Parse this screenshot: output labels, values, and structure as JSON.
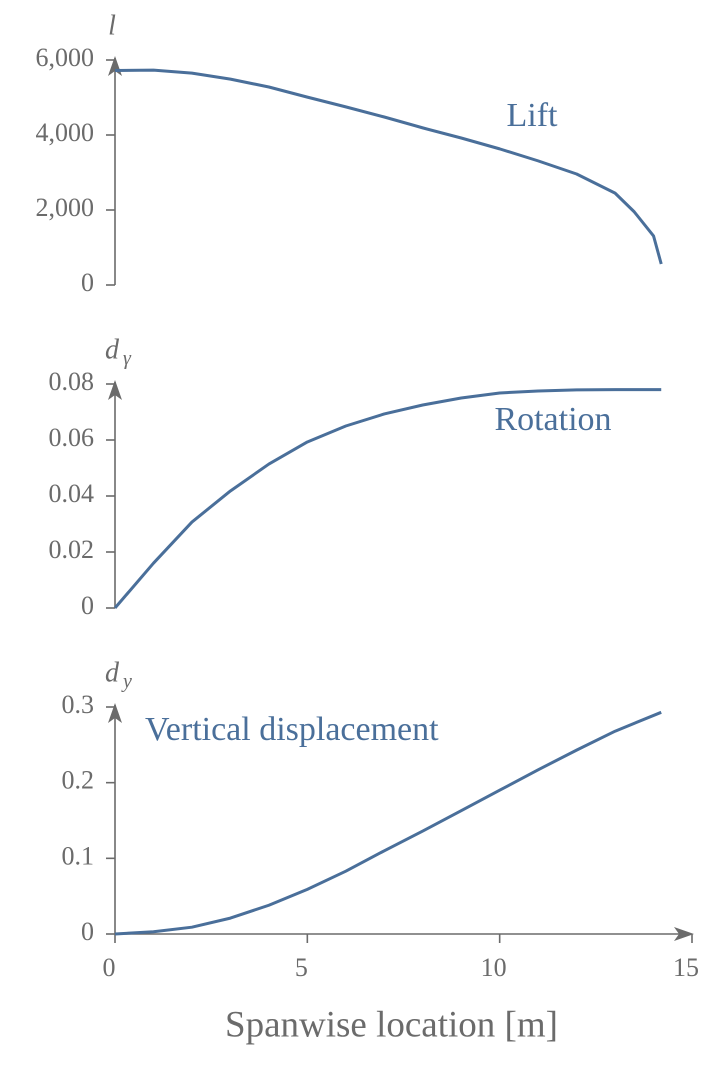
{
  "chart_data": [
    {
      "type": "line",
      "ylabel": "l",
      "x": [
        0,
        1,
        2,
        3,
        4,
        5,
        6,
        7,
        8,
        9,
        10,
        11,
        12,
        13,
        13.5,
        14,
        14.2
      ],
      "series": [
        {
          "name": "Lift",
          "color": "#4a6f9a",
          "values": [
            5720,
            5730,
            5650,
            5490,
            5280,
            5010,
            4750,
            4480,
            4190,
            3920,
            3630,
            3310,
            2960,
            2450,
            1950,
            1310,
            560
          ]
        }
      ],
      "xlim": [
        0,
        15
      ],
      "ylim": [
        0,
        6000
      ],
      "yticks": [
        0,
        {
          "value": 2000,
          "label": "2,000"
        },
        {
          "value": 4000,
          "label": "4,000"
        },
        {
          "value": 6000,
          "label": "6,000"
        }
      ]
    },
    {
      "type": "line",
      "ylabel": "d",
      "ylabel_subscript": "γ",
      "x": [
        0,
        1,
        2,
        3,
        4,
        5,
        6,
        7,
        8,
        9,
        10,
        11,
        12,
        13,
        14.2
      ],
      "series": [
        {
          "name": "Rotation",
          "color": "#4a6f9a",
          "values": [
            0,
            0.016,
            0.0307,
            0.0418,
            0.0514,
            0.0593,
            0.065,
            0.0693,
            0.0725,
            0.075,
            0.0768,
            0.0775,
            0.0779,
            0.078,
            0.078
          ]
        }
      ],
      "xlim": [
        0,
        15
      ],
      "ylim": [
        0,
        0.08
      ],
      "yticks": [
        0,
        0.02,
        0.04,
        0.06,
        0.08
      ]
    },
    {
      "type": "line",
      "ylabel": "d",
      "ylabel_subscript": "y",
      "xlabel": "Spanwise location [m]",
      "x": [
        0,
        1,
        2,
        3,
        4,
        5,
        6,
        7,
        8,
        9,
        10,
        11,
        12,
        13,
        14.2
      ],
      "series": [
        {
          "name": "Vertical displacement",
          "color": "#4a6f9a",
          "values": [
            0,
            0.003,
            0.009,
            0.021,
            0.038,
            0.059,
            0.083,
            0.11,
            0.136,
            0.163,
            0.19,
            0.217,
            0.243,
            0.268,
            0.293
          ]
        }
      ],
      "xlim": [
        0,
        15
      ],
      "xticks": [
        0,
        5,
        10,
        15
      ],
      "ylim": [
        0,
        0.3
      ],
      "yticks": [
        0,
        0.1,
        0.2,
        0.3
      ]
    }
  ]
}
